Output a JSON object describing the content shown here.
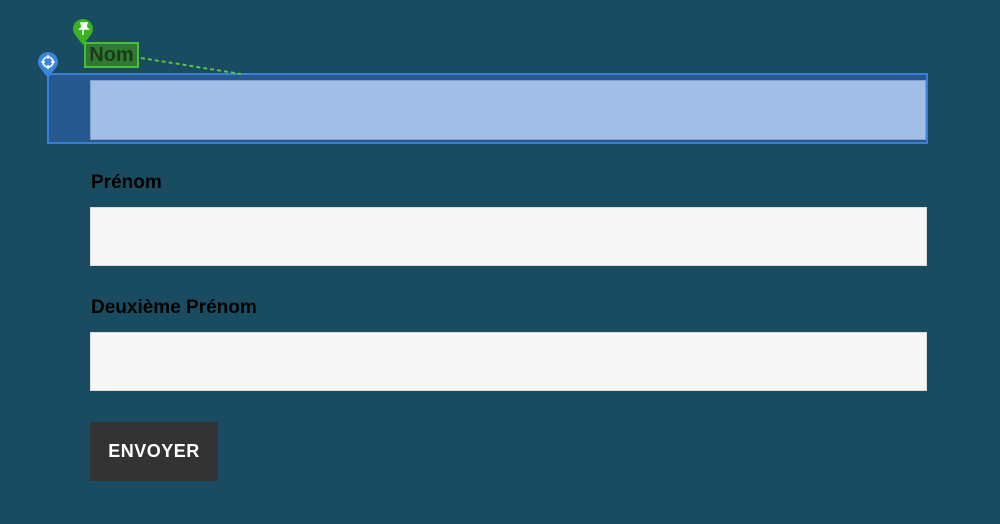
{
  "form": {
    "nom_label": "Nom",
    "prenom_label": "Prénom",
    "deuxieme_prenom_label": "Deuxième Prénom",
    "nom_value": "",
    "prenom_value": "",
    "deuxieme_prenom_value": "",
    "submit_label": "ENVOYER"
  },
  "overlay": {
    "pin_icon": "pushpin-icon",
    "target_icon": "crosshair-icon",
    "accent": "#3a7fd6",
    "tag_color": "#4cbc3c"
  }
}
